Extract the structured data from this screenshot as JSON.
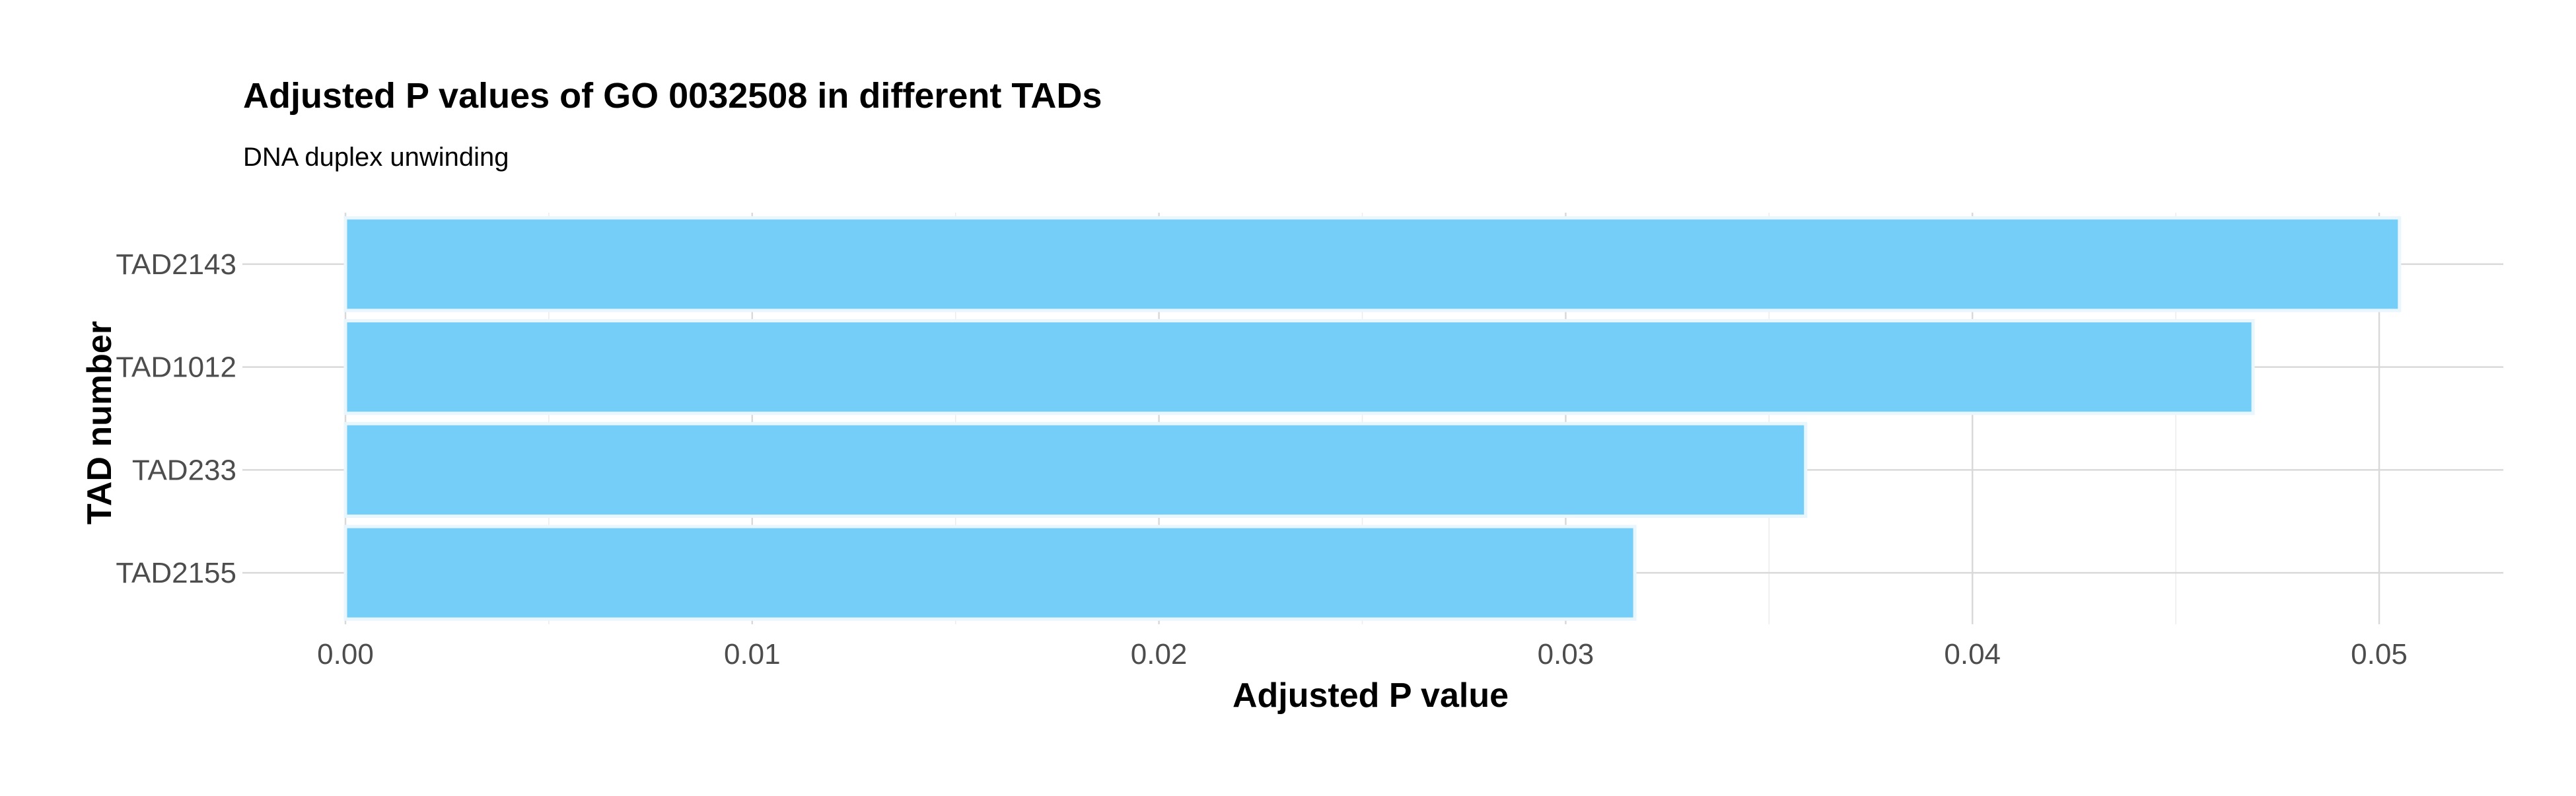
{
  "chart_data": {
    "type": "bar",
    "orientation": "horizontal",
    "title": "Adjusted P values of GO 0032508 in different TADs",
    "subtitle": "DNA duplex unwinding",
    "xlabel": "Adjusted P value",
    "ylabel": "TAD number",
    "categories": [
      "TAD2143",
      "TAD1012",
      "TAD233",
      "TAD2155"
    ],
    "values": [
      0.0505,
      0.0469,
      0.0359,
      0.0317
    ],
    "xlim": [
      0,
      0.053
    ],
    "xticks": [
      0.0,
      0.01,
      0.02,
      0.03,
      0.04,
      0.05
    ],
    "xtick_labels": [
      "0.00",
      "0.01",
      "0.02",
      "0.03",
      "0.04",
      "0.05"
    ],
    "bar_color": "#74CEF8",
    "grid": true,
    "legend": "none"
  }
}
